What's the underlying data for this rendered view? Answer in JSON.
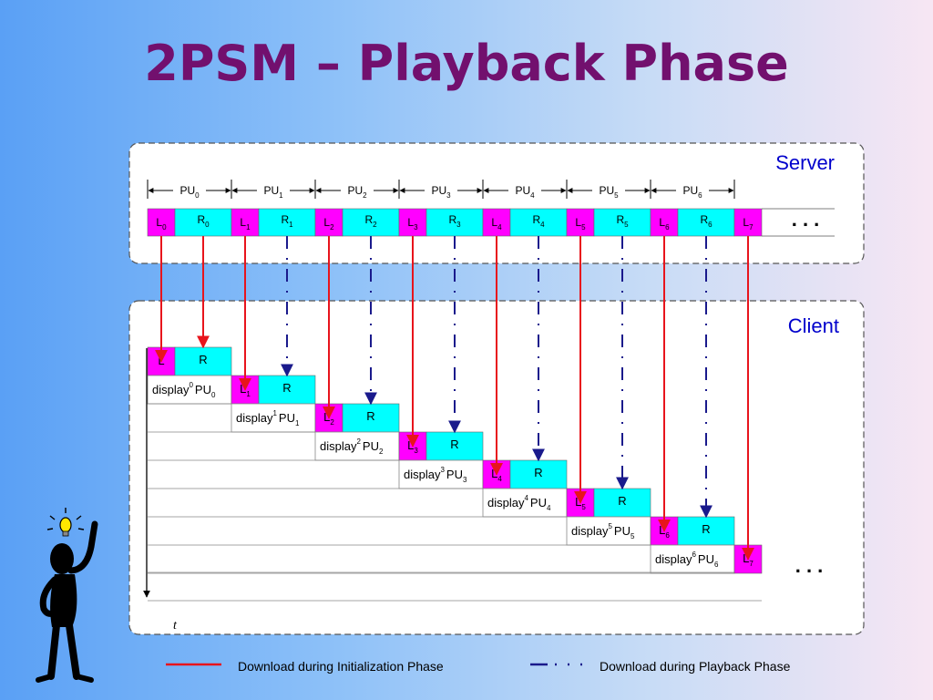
{
  "title": "2PSM – Playback Phase",
  "server_label": "Server",
  "client_label": "Client",
  "pu_base": "PU",
  "pu_count": 7,
  "server_blocks": [
    {
      "l": "L",
      "lsub": "0",
      "r": "R",
      "rsub": "0"
    },
    {
      "l": "L",
      "lsub": "1",
      "r": "R",
      "rsub": "1"
    },
    {
      "l": "L",
      "lsub": "2",
      "r": "R",
      "rsub": "2"
    },
    {
      "l": "L",
      "lsub": "3",
      "r": "R",
      "rsub": "3"
    },
    {
      "l": "L",
      "lsub": "4",
      "r": "R",
      "rsub": "4"
    },
    {
      "l": "L",
      "lsub": "5",
      "r": "R",
      "rsub": "5"
    },
    {
      "l": "L",
      "lsub": "6",
      "r": "R",
      "rsub": "6"
    },
    {
      "l": "L",
      "lsub": "7"
    }
  ],
  "server_ellipsis": ". . .",
  "client_rows": [
    {
      "l": "L",
      "lsub": "",
      "r": "R",
      "display": "display",
      "dsup": "0",
      "pu": "PU",
      "pusub": "0"
    },
    {
      "l": "L",
      "lsub": "1",
      "r": "R",
      "display": "display",
      "dsup": "1",
      "pu": "PU",
      "pusub": "1"
    },
    {
      "l": "L",
      "lsub": "2",
      "r": "R",
      "display": "display",
      "dsup": "2",
      "pu": "PU",
      "pusub": "2"
    },
    {
      "l": "L",
      "lsub": "3",
      "r": "R",
      "display": "display",
      "dsup": "3",
      "pu": "PU",
      "pusub": "3"
    },
    {
      "l": "L",
      "lsub": "4",
      "r": "R",
      "display": "display",
      "dsup": "4",
      "pu": "PU",
      "pusub": "4"
    },
    {
      "l": "L",
      "lsub": "5",
      "r": "R",
      "display": "display",
      "dsup": "5",
      "pu": "PU",
      "pusub": "5"
    },
    {
      "l": "L",
      "lsub": "6",
      "r": "R",
      "display": "display",
      "dsup": "6",
      "pu": "PU",
      "pusub": "6"
    },
    {
      "l": "L",
      "lsub": "7"
    }
  ],
  "client_ellipsis": ". . .",
  "time_axis_label": "t",
  "legend": {
    "init_label": "Download during Initialization Phase",
    "playback_label": "Download during Playback Phase"
  },
  "colors": {
    "title": "#72106e",
    "l_block": "#ff00ff",
    "r_block": "#00ffff",
    "init_arrow": "#e8141c",
    "playback_arrow": "#1a1a8c",
    "text": "#0000cc"
  }
}
